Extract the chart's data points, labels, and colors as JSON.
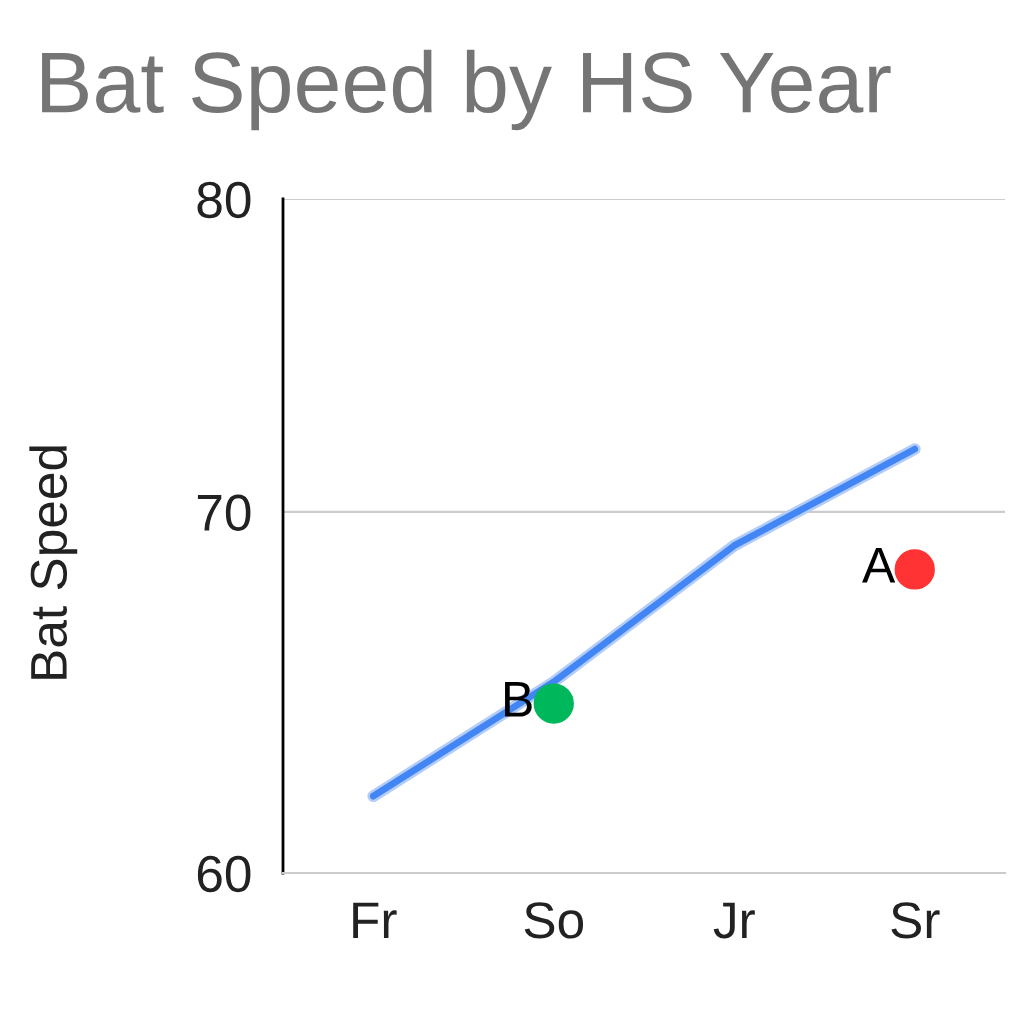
{
  "chart_data": {
    "type": "line",
    "title": "Bat Speed by HS Year",
    "ylabel": "Bat Speed",
    "categories": [
      "Fr",
      "So",
      "Jr",
      "Sr"
    ],
    "ylim": [
      60,
      80
    ],
    "yticks": [
      60,
      70,
      80
    ],
    "log": "y",
    "grid": "y",
    "legend": false,
    "marker": "circle",
    "line_style": "solid",
    "series": [
      {
        "marker": "none",
        "color": "#b3cdf8",
        "values": [
          62.0,
          65.1,
          69.0,
          71.9
        ]
      },
      {
        "marker": "none",
        "color": "#4285f4",
        "values": [
          62.0,
          65.1,
          69.0,
          71.9
        ]
      },
      {
        "type": "scatter",
        "name": "B",
        "color": "#00b85c",
        "x": [
          "So"
        ],
        "values": [
          64.5
        ]
      },
      {
        "type": "scatter",
        "name": "A",
        "color": "#ff3333",
        "x": [
          "Sr"
        ],
        "values": [
          68.3
        ]
      }
    ]
  }
}
